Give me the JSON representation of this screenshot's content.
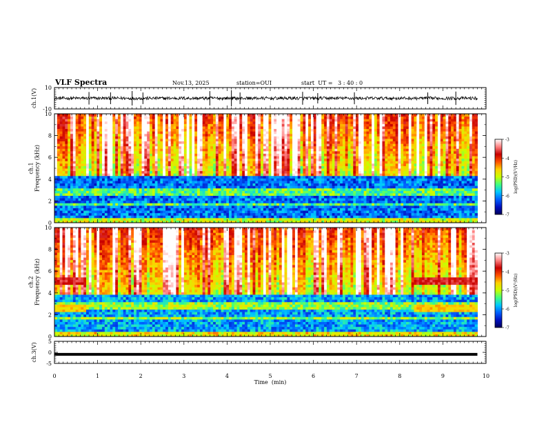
{
  "header": {
    "title": "VLF Spectra",
    "date": "Nov.13, 2025",
    "station": "station=OUI",
    "start_ut": "start  UT =   3 : 40 : 0"
  },
  "colors": {
    "background": "#ffffff",
    "trace": "#000000",
    "colormap": [
      "#00005a",
      "#0010c0",
      "#0060ff",
      "#00c8ff",
      "#40ff80",
      "#c8ff00",
      "#ffd000",
      "#ff5000",
      "#c80000",
      "#ff8080",
      "#ffffff"
    ]
  },
  "chart_data": [
    {
      "type": "line",
      "panel": "ch1-waveform",
      "ylabel": "ch.1(V)",
      "ylim": [
        -10,
        10
      ],
      "y_ticks": [
        "10",
        "-10"
      ],
      "xlim": [
        0,
        10
      ],
      "baseline": 0,
      "amplitude_typical": 1.5,
      "spikes_x_min": [
        0.8,
        1.3,
        1.8,
        2.05,
        3.6,
        4.1,
        4.3,
        5.75,
        6.1,
        6.95,
        8.65,
        9.3
      ]
    },
    {
      "type": "heatmap",
      "panel": "ch1-spectrogram",
      "ylabel": "ch.1\nFrequency (kHz)",
      "ylabel_lines": [
        "ch.1",
        "Frequency (kHz)"
      ],
      "ylim": [
        0,
        10
      ],
      "y_ticks": [
        "10",
        "8",
        "6",
        "4",
        "2",
        "0"
      ],
      "xlim": [
        0,
        10
      ],
      "colorbar": {
        "label": "log(PSD)(V²/Hz)",
        "min": -7,
        "max": -3,
        "ticks": [
          "-3",
          "-4",
          "-5",
          "-6",
          "-7"
        ]
      },
      "band_edge_khz": 4.2,
      "background_log_psd": -6.6
    },
    {
      "type": "heatmap",
      "panel": "ch2-spectrogram",
      "ylabel": "ch.2\nFrequency (kHz)",
      "ylabel_lines": [
        "ch.2",
        "Frequency (kHz)"
      ],
      "ylim": [
        0,
        10
      ],
      "y_ticks": [
        "10",
        "8",
        "6",
        "4",
        "2",
        "0"
      ],
      "xlim": [
        0,
        10
      ],
      "colorbar": {
        "label": "log(PSD)(V²/Hz)",
        "min": -7,
        "max": -3,
        "ticks": [
          "-3",
          "-4",
          "-5",
          "-6",
          "-7"
        ]
      },
      "band_edge_khz": 3.8,
      "background_log_psd": -6.4,
      "emission_band_khz": 5.0,
      "emission_intervals_min": [
        [
          0,
          0.7
        ],
        [
          8.3,
          9.8
        ]
      ]
    },
    {
      "type": "line",
      "panel": "ch3-waveform",
      "ylabel": "ch.3(V)",
      "ylim": [
        -5,
        5
      ],
      "y_ticks": [
        "5",
        "0",
        "-5"
      ],
      "xlim": [
        0,
        10
      ],
      "level": -0.9
    }
  ],
  "x_axis": {
    "label": "Time  (min)",
    "range": [
      0,
      10
    ],
    "ticks": [
      "0",
      "1",
      "2",
      "3",
      "4",
      "5",
      "6",
      "7",
      "8",
      "9",
      "10"
    ],
    "data_end_min": 9.8
  }
}
